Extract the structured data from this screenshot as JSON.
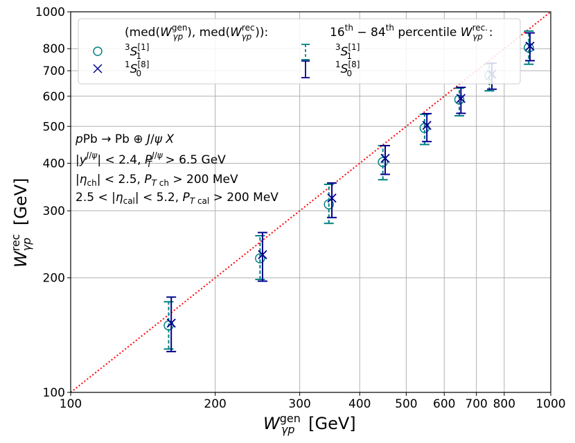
{
  "chart_data": {
    "type": "scatter",
    "xscale": "log",
    "yscale": "log",
    "xlim": [
      100,
      1000
    ],
    "ylim": [
      100,
      1000
    ],
    "grid": true,
    "xlabel": {
      "main": "W",
      "sub": "γp",
      "sup": "gen",
      "unit": "[GeV]"
    },
    "ylabel": {
      "main": "W",
      "sub": "γp",
      "sup": "rec",
      "unit": "[GeV]"
    },
    "x_tick_labels": [
      "100",
      "200",
      "300",
      "400",
      "500",
      "600",
      "700",
      "800",
      "1000"
    ],
    "y_tick_labels": [
      "100",
      "200",
      "300",
      "400",
      "500",
      "600",
      "700",
      "800",
      "1000"
    ],
    "tick_values": [
      100,
      200,
      300,
      400,
      500,
      600,
      700,
      800,
      1000
    ],
    "diagonal": {
      "from": [
        100,
        100
      ],
      "to": [
        1000,
        1000
      ],
      "color": "#ff0000",
      "style": "dotted"
    },
    "series": [
      {
        "name": "3S1[1]",
        "marker": "circle",
        "color": "#008080",
        "errorbar_style": "dashed",
        "points": [
          {
            "x": 160,
            "y": 150,
            "lo": 130,
            "hi": 173
          },
          {
            "x": 248,
            "y": 225,
            "lo": 198,
            "hi": 258
          },
          {
            "x": 345,
            "y": 312,
            "lo": 278,
            "hi": 352
          },
          {
            "x": 447,
            "y": 403,
            "lo": 362,
            "hi": 445
          },
          {
            "x": 546,
            "y": 495,
            "lo": 448,
            "hi": 538
          },
          {
            "x": 645,
            "y": 588,
            "lo": 533,
            "hi": 630
          },
          {
            "x": 745,
            "y": 680,
            "lo": 620,
            "hi": 730
          },
          {
            "x": 900,
            "y": 805,
            "lo": 728,
            "hi": 890
          }
        ]
      },
      {
        "name": "1S0[8]",
        "marker": "x",
        "color": "#00008b",
        "errorbar_style": "solid",
        "points": [
          {
            "x": 162,
            "y": 152,
            "lo": 128,
            "hi": 178
          },
          {
            "x": 251,
            "y": 230,
            "lo": 196,
            "hi": 263
          },
          {
            "x": 350,
            "y": 324,
            "lo": 288,
            "hi": 355
          },
          {
            "x": 452,
            "y": 412,
            "lo": 374,
            "hi": 445
          },
          {
            "x": 552,
            "y": 503,
            "lo": 456,
            "hi": 540
          },
          {
            "x": 650,
            "y": 592,
            "lo": 541,
            "hi": 633
          },
          {
            "x": 754,
            "y": 686,
            "lo": 626,
            "hi": 733
          },
          {
            "x": 905,
            "y": 812,
            "lo": 744,
            "hi": 880
          }
        ]
      }
    ],
    "legend": {
      "placement": "top",
      "left_header": "(med(W",
      "right_header": "16",
      "entries": [
        {
          "label_main": "S",
          "label_pre": "3",
          "label_sub": "1",
          "label_sup": "[1]"
        },
        {
          "label_main": "S",
          "label_pre": "1",
          "label_sub": "0",
          "label_sup": "[8]"
        }
      ]
    },
    "annotations": [
      "pPb → Pb ⊕ J/ψ X",
      "|y^{J/ψ}| < 2.4, P_T^{J/ψ} > 6.5 GeV",
      "|η_ch| < 2.5, P_{T ch} > 200 MeV",
      "2.5 < |η_cal| < 5.2, P_{T cal} > 200 MeV"
    ]
  }
}
